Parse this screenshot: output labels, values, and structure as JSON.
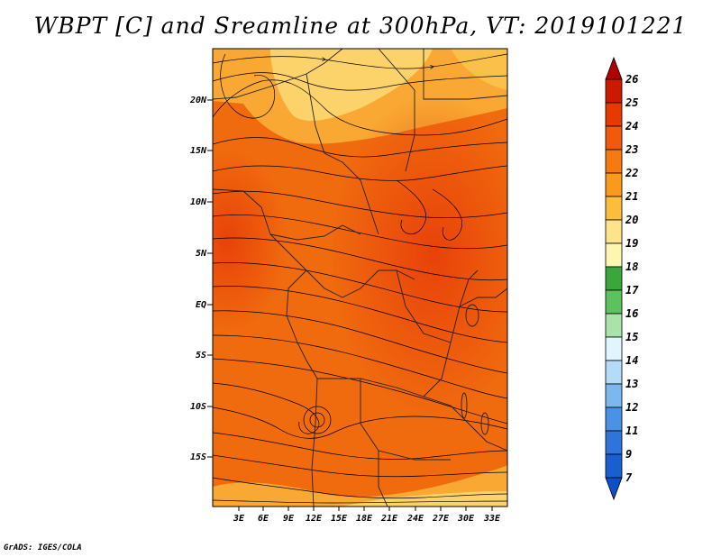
{
  "title": "WBPT [C] and Sreamline at 300hPa, VT: 2019101221",
  "footer": "GrADS: IGES/COLA",
  "map": {
    "lat_ticks": [
      "20N",
      "15N",
      "10N",
      "5N",
      "EQ",
      "5S",
      "10S",
      "15S"
    ],
    "lon_ticks": [
      "3E",
      "6E",
      "9E",
      "12E",
      "15E",
      "18E",
      "21E",
      "24E",
      "27E",
      "30E",
      "33E"
    ]
  },
  "colorbar": {
    "labels": [
      "26",
      "25",
      "24",
      "23",
      "22",
      "21",
      "20",
      "19",
      "18",
      "17",
      "16",
      "15",
      "14",
      "13",
      "12",
      "11",
      "9",
      "7"
    ],
    "colors": [
      "#b10000",
      "#cc1a00",
      "#e63a00",
      "#f05a0a",
      "#f57a10",
      "#f99a1a",
      "#fbbe3c",
      "#fde38a",
      "#fcf6b0",
      "#3aa73a",
      "#5cc35c",
      "#a8e3a8",
      "#e0f5ff",
      "#b4dcf7",
      "#7ab8ee",
      "#4a92e4",
      "#2f74da",
      "#1a5fd0",
      "#0d4fc8"
    ]
  }
}
